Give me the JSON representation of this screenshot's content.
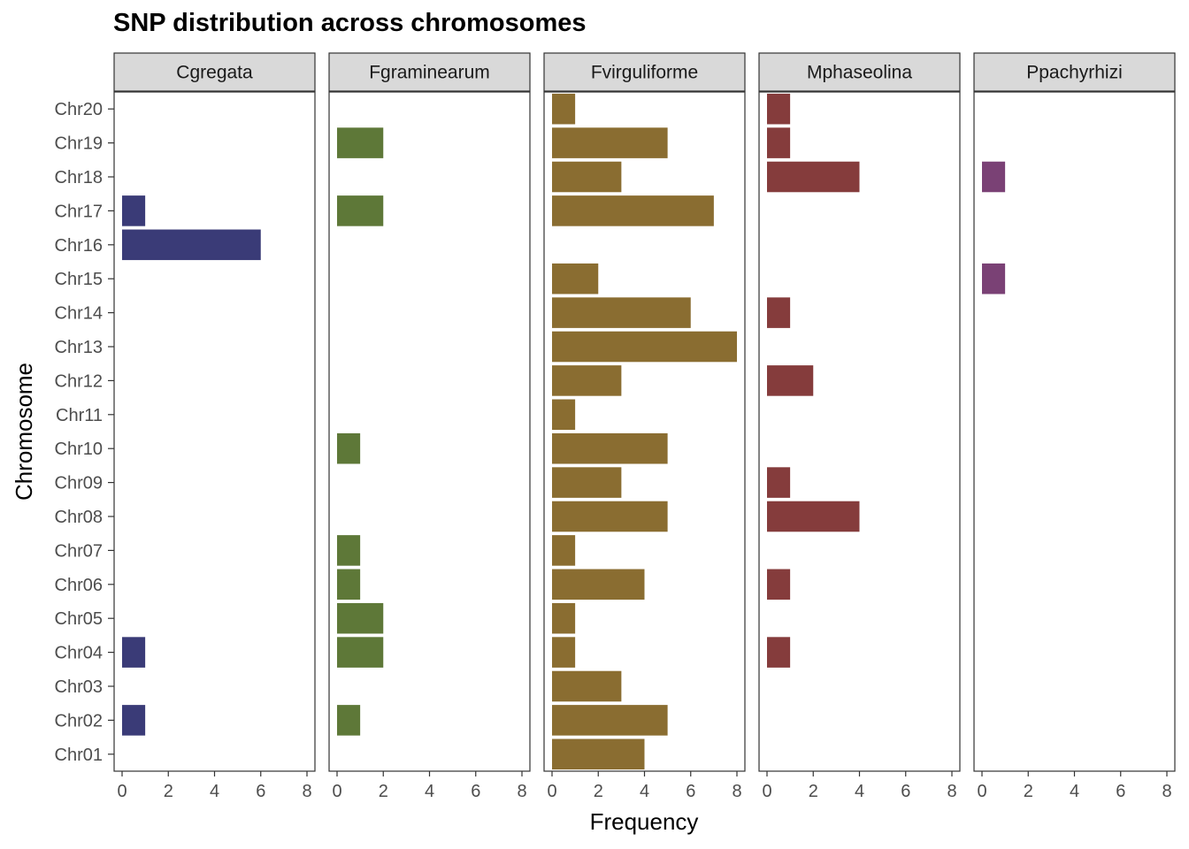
{
  "chart_data": {
    "type": "bar",
    "orientation": "horizontal",
    "title": "SNP distribution across chromosomes",
    "xlabel": "Frequency",
    "ylabel": "Chromosome",
    "xlim": [
      0,
      8
    ],
    "x_ticks": [
      0,
      2,
      4,
      6,
      8
    ],
    "grid": false,
    "categories": [
      "Chr01",
      "Chr02",
      "Chr03",
      "Chr04",
      "Chr05",
      "Chr06",
      "Chr07",
      "Chr08",
      "Chr09",
      "Chr10",
      "Chr11",
      "Chr12",
      "Chr13",
      "Chr14",
      "Chr15",
      "Chr16",
      "Chr17",
      "Chr18",
      "Chr19",
      "Chr20"
    ],
    "series": [
      {
        "name": "Cgregata",
        "color": "#3A3B77",
        "values": [
          0,
          1,
          0,
          1,
          0,
          0,
          0,
          0,
          0,
          0,
          0,
          0,
          0,
          0,
          0,
          6,
          1,
          0,
          0,
          0
        ]
      },
      {
        "name": "Fgraminearum",
        "color": "#5E7838",
        "values": [
          0,
          1,
          0,
          2,
          2,
          1,
          1,
          0,
          0,
          1,
          0,
          0,
          0,
          0,
          0,
          0,
          2,
          0,
          2,
          0
        ]
      },
      {
        "name": "Fvirguliforme",
        "color": "#8A6D31",
        "values": [
          4,
          5,
          3,
          1,
          1,
          4,
          1,
          5,
          3,
          5,
          1,
          3,
          8,
          6,
          2,
          0,
          7,
          3,
          5,
          1
        ]
      },
      {
        "name": "Mphaseolina",
        "color": "#853C3C",
        "values": [
          0,
          0,
          0,
          1,
          0,
          1,
          0,
          4,
          1,
          0,
          0,
          2,
          0,
          1,
          0,
          0,
          0,
          4,
          1,
          1
        ]
      },
      {
        "name": "Ppachyrhizi",
        "color": "#7A4175",
        "values": [
          0,
          0,
          0,
          0,
          0,
          0,
          0,
          0,
          0,
          0,
          0,
          0,
          0,
          0,
          1,
          0,
          0,
          1,
          0,
          0
        ]
      }
    ]
  }
}
